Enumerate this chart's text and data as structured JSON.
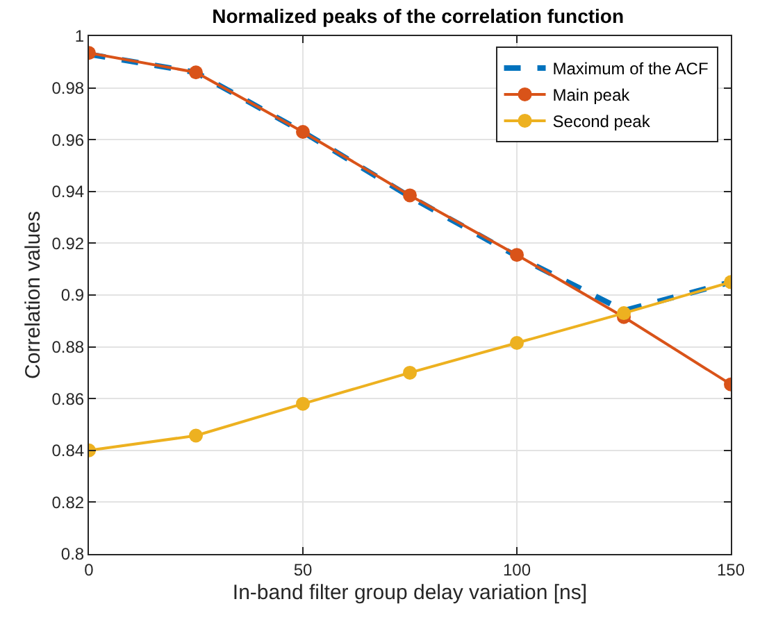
{
  "chart_data": {
    "type": "line",
    "title": "Normalized peaks of the correlation function",
    "xlabel": "In-band filter group delay variation [ns]",
    "ylabel": "Correlation values",
    "x": [
      0,
      25,
      50,
      75,
      100,
      125,
      150
    ],
    "series": [
      {
        "name": "Maximum of the ACF",
        "color": "#0072bd",
        "line_style": "dashed",
        "marker": "none",
        "values": [
          0.993,
          0.986,
          0.963,
          0.938,
          0.915,
          0.894,
          0.905
        ]
      },
      {
        "name": "Main peak",
        "color": "#d95319",
        "line_style": "solid",
        "marker": "circle",
        "values": [
          0.9935,
          0.986,
          0.963,
          0.9385,
          0.9155,
          0.8915,
          0.8655
        ]
      },
      {
        "name": "Second peak",
        "color": "#edb120",
        "line_style": "solid",
        "marker": "circle",
        "values": [
          0.84,
          0.8457,
          0.858,
          0.87,
          0.8815,
          0.893,
          0.905
        ]
      }
    ],
    "xlim": [
      0,
      150
    ],
    "xticks": [
      0,
      50,
      100,
      150
    ],
    "ylim": [
      0.8,
      1
    ],
    "yticks": [
      0.8,
      0.82,
      0.84,
      0.86,
      0.88,
      0.9,
      0.92,
      0.94,
      0.96,
      0.98,
      1
    ],
    "grid": true,
    "legend": "top right"
  }
}
